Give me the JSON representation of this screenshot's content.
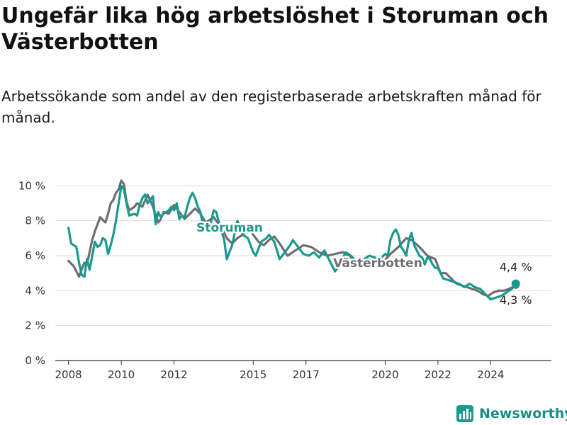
{
  "title": "Ungefär lika hög arbetslöshet i Storuman och Västerbotten",
  "subtitle": "Arbetssökande som andel av den registerbaserade arbetskraften månad för månad.",
  "brand": {
    "name": "Newsworthy",
    "color": "#1a9a8e"
  },
  "chart_data": {
    "type": "line",
    "ylim": [
      0,
      10.5
    ],
    "xlim": [
      2007.5,
      2026.3
    ],
    "y_ticks": [
      0,
      2,
      4,
      6,
      8,
      10
    ],
    "y_tick_format": "{v} %",
    "x_ticks": [
      2008,
      2010,
      2012,
      2015,
      2017,
      2020,
      2022,
      2024
    ],
    "grid": true,
    "series": [
      {
        "name": "Storuman",
        "color": "#1a9a8e",
        "end_label": "4,4 %",
        "x": [
          2008.0,
          2008.1,
          2008.3,
          2008.4,
          2008.5,
          2008.6,
          2008.7,
          2008.8,
          2009.0,
          2009.1,
          2009.2,
          2009.3,
          2009.4,
          2009.5,
          2009.6,
          2009.7,
          2009.8,
          2009.9,
          2010.0,
          2010.1,
          2010.2,
          2010.3,
          2010.5,
          2010.6,
          2010.7,
          2010.8,
          2010.9,
          2011.0,
          2011.2,
          2011.3,
          2011.4,
          2011.5,
          2011.6,
          2011.8,
          2011.9,
          2012.0,
          2012.1,
          2012.2,
          2012.3,
          2012.4,
          2012.5,
          2012.6,
          2012.7,
          2012.8,
          2012.9,
          2013.0,
          2013.1,
          2013.2,
          2013.3,
          2013.4,
          2013.5,
          2013.6,
          2013.7,
          2013.8,
          2013.9,
          2014.0,
          2014.2,
          2014.4,
          2014.6,
          2014.8,
          2015.0,
          2015.1,
          2015.2,
          2015.3,
          2015.5,
          2015.6,
          2015.8,
          2016.0,
          2016.2,
          2016.4,
          2016.5,
          2016.7,
          2016.9,
          2017.1,
          2017.3,
          2017.5,
          2017.7,
          2017.9,
          2018.1,
          2018.3,
          2018.5,
          2018.7,
          2018.9,
          2019.1,
          2019.2,
          2019.4,
          2019.6,
          2019.8,
          2020.0,
          2020.1,
          2020.2,
          2020.3,
          2020.4,
          2020.5,
          2020.6,
          2020.7,
          2020.8,
          2020.9,
          2021.0,
          2021.1,
          2021.2,
          2021.3,
          2021.4,
          2021.5,
          2021.6,
          2021.7,
          2021.8,
          2021.9,
          2022.0,
          2022.2,
          2022.4,
          2022.6,
          2022.8,
          2023.0,
          2023.2,
          2023.4,
          2023.6,
          2023.8,
          2024.0,
          2024.2,
          2024.4,
          2024.6,
          2024.8,
          2024.95
        ],
        "values": [
          7.6,
          6.7,
          6.5,
          5.6,
          4.9,
          4.8,
          5.8,
          5.2,
          6.8,
          6.5,
          6.6,
          7.0,
          6.9,
          6.1,
          6.6,
          7.2,
          8.0,
          9.0,
          10.0,
          9.8,
          9.0,
          8.3,
          8.4,
          8.3,
          8.9,
          9.3,
          9.5,
          9.0,
          9.4,
          7.8,
          8.5,
          8.2,
          8.4,
          8.6,
          8.8,
          8.6,
          9.0,
          8.1,
          8.3,
          8.2,
          8.8,
          9.3,
          9.6,
          9.3,
          8.8,
          8.5,
          7.7,
          7.5,
          7.6,
          7.9,
          8.6,
          8.5,
          7.9,
          7.4,
          6.9,
          5.8,
          6.6,
          8.0,
          7.2,
          7.0,
          6.2,
          6.0,
          6.4,
          6.8,
          7.0,
          7.2,
          6.8,
          5.8,
          6.2,
          6.6,
          6.9,
          6.5,
          6.1,
          6.0,
          6.2,
          5.9,
          6.3,
          5.7,
          5.1,
          5.5,
          6.2,
          6.0,
          5.7,
          5.6,
          5.8,
          6.0,
          5.9,
          5.8,
          6.1,
          6.0,
          6.9,
          7.3,
          7.5,
          7.2,
          6.5,
          6.3,
          6.0,
          6.9,
          7.3,
          6.6,
          6.3,
          6.0,
          5.9,
          5.5,
          5.9,
          5.8,
          5.5,
          5.3,
          5.3,
          4.7,
          4.6,
          4.5,
          4.4,
          4.2,
          4.4,
          4.2,
          4.1,
          3.8,
          3.5,
          3.6,
          3.7,
          3.9,
          4.1,
          4.4
        ]
      },
      {
        "name": "Västerbotten",
        "color": "#6e6e72",
        "end_label": "4,3 %",
        "x": [
          2008.0,
          2008.2,
          2008.3,
          2008.4,
          2008.5,
          2008.6,
          2008.7,
          2008.8,
          2008.9,
          2009.0,
          2009.2,
          2009.4,
          2009.5,
          2009.6,
          2009.7,
          2009.8,
          2009.9,
          2010.0,
          2010.1,
          2010.2,
          2010.3,
          2010.5,
          2010.6,
          2010.8,
          2011.0,
          2011.2,
          2011.4,
          2011.5,
          2011.6,
          2011.8,
          2012.0,
          2012.2,
          2012.4,
          2012.6,
          2012.8,
          2013.0,
          2013.2,
          2013.5,
          2013.8,
          2014.0,
          2014.2,
          2014.4,
          2014.6,
          2014.8,
          2015.0,
          2015.2,
          2015.4,
          2015.6,
          2015.8,
          2016.0,
          2016.3,
          2016.6,
          2016.9,
          2017.2,
          2017.5,
          2017.8,
          2018.1,
          2018.4,
          2018.7,
          2019.0,
          2019.3,
          2019.6,
          2019.9,
          2020.2,
          2020.5,
          2020.8,
          2021.0,
          2021.3,
          2021.6,
          2021.9,
          2022.1,
          2022.3,
          2022.5,
          2022.7,
          2022.9,
          2023.1,
          2023.3,
          2023.5,
          2023.7,
          2023.9,
          2024.1,
          2024.3,
          2024.5,
          2024.7,
          2024.95
        ],
        "values": [
          5.7,
          5.4,
          5.1,
          4.8,
          5.2,
          5.6,
          5.5,
          6.2,
          6.9,
          7.4,
          8.2,
          7.9,
          8.4,
          9.0,
          9.2,
          9.6,
          9.8,
          10.3,
          10.1,
          9.1,
          8.6,
          8.8,
          9.0,
          8.8,
          9.5,
          8.8,
          7.9,
          8.1,
          8.5,
          8.4,
          8.9,
          8.5,
          8.1,
          8.4,
          8.7,
          8.4,
          7.9,
          8.2,
          7.6,
          7.0,
          6.7,
          7.0,
          7.2,
          7.6,
          7.2,
          6.8,
          6.6,
          6.9,
          7.1,
          6.7,
          6.0,
          6.3,
          6.6,
          6.5,
          6.2,
          6.0,
          6.1,
          6.2,
          5.9,
          5.6,
          5.8,
          5.7,
          5.6,
          6.1,
          6.5,
          7.0,
          6.9,
          6.5,
          6.0,
          5.8,
          5.0,
          5.0,
          4.7,
          4.4,
          4.3,
          4.2,
          4.1,
          4.0,
          3.8,
          3.7,
          3.9,
          4.0,
          4.0,
          4.1,
          4.3
        ]
      }
    ]
  }
}
